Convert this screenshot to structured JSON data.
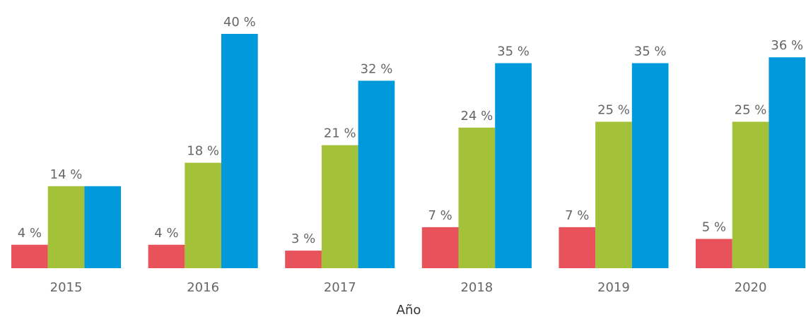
{
  "chart_data": {
    "type": "bar",
    "x_label": "Año",
    "categories": [
      "2015",
      "2016",
      "2017",
      "2018",
      "2019",
      "2020"
    ],
    "series": [
      {
        "color": "#e8525a",
        "values": [
          4,
          4,
          3,
          7,
          7,
          5
        ],
        "value_labels": [
          "4 %",
          "4 %",
          "3 %",
          "7 %",
          "7 %",
          "5 %"
        ]
      },
      {
        "color": "#a4c13a",
        "values": [
          14,
          18,
          21,
          24,
          25,
          25
        ],
        "value_labels": [
          "14 %",
          "18 %",
          "21 %",
          "24 %",
          "25 %",
          "25 %"
        ]
      },
      {
        "color": "#0099dc",
        "values": [
          14,
          40,
          32,
          35,
          35,
          36
        ],
        "value_labels": [
          null,
          "40 %",
          "32 %",
          "35 %",
          "35 %",
          "36 %"
        ]
      }
    ]
  }
}
